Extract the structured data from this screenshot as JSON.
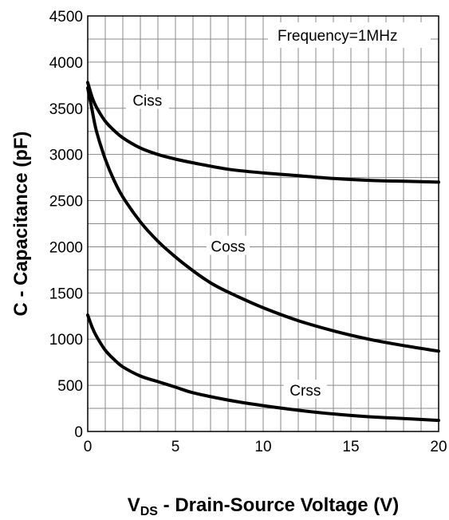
{
  "chart_data": {
    "type": "line",
    "title": "",
    "annotation": "Frequency=1MHz",
    "ylabel": "C - Capacitance (pF)",
    "xlabel": {
      "main": "V",
      "subscript": "DS",
      "rest": " - Drain-Source Voltage (V)"
    },
    "xlim": [
      0,
      20
    ],
    "ylim": [
      0,
      4500
    ],
    "x_ticks": [
      0,
      5,
      10,
      15,
      20
    ],
    "y_ticks": [
      0,
      500,
      1000,
      1500,
      2000,
      2500,
      3000,
      3500,
      4000,
      4500
    ],
    "grid": true,
    "series": [
      {
        "name": "Ciss",
        "x": [
          0,
          0.25,
          0.5,
          1,
          1.5,
          2,
          3,
          4,
          5,
          6,
          8,
          10,
          12,
          14,
          16,
          18,
          20
        ],
        "y": [
          3780,
          3620,
          3510,
          3360,
          3260,
          3180,
          3070,
          3000,
          2950,
          2910,
          2840,
          2800,
          2770,
          2740,
          2720,
          2710,
          2700
        ]
      },
      {
        "name": "Coss",
        "x": [
          0,
          0.25,
          0.5,
          1,
          1.5,
          2,
          3,
          4,
          5,
          6,
          7,
          8,
          10,
          12,
          14,
          16,
          18,
          20
        ],
        "y": [
          3720,
          3480,
          3250,
          2950,
          2720,
          2540,
          2270,
          2060,
          1890,
          1740,
          1610,
          1510,
          1340,
          1200,
          1090,
          1000,
          930,
          870
        ]
      },
      {
        "name": "Crss",
        "x": [
          0,
          0.25,
          0.5,
          1,
          1.5,
          2,
          3,
          4,
          5,
          6,
          8,
          10,
          12,
          14,
          16,
          18,
          20
        ],
        "y": [
          1260,
          1130,
          1030,
          880,
          780,
          700,
          600,
          540,
          480,
          420,
          340,
          280,
          230,
          190,
          160,
          140,
          120
        ]
      }
    ]
  }
}
